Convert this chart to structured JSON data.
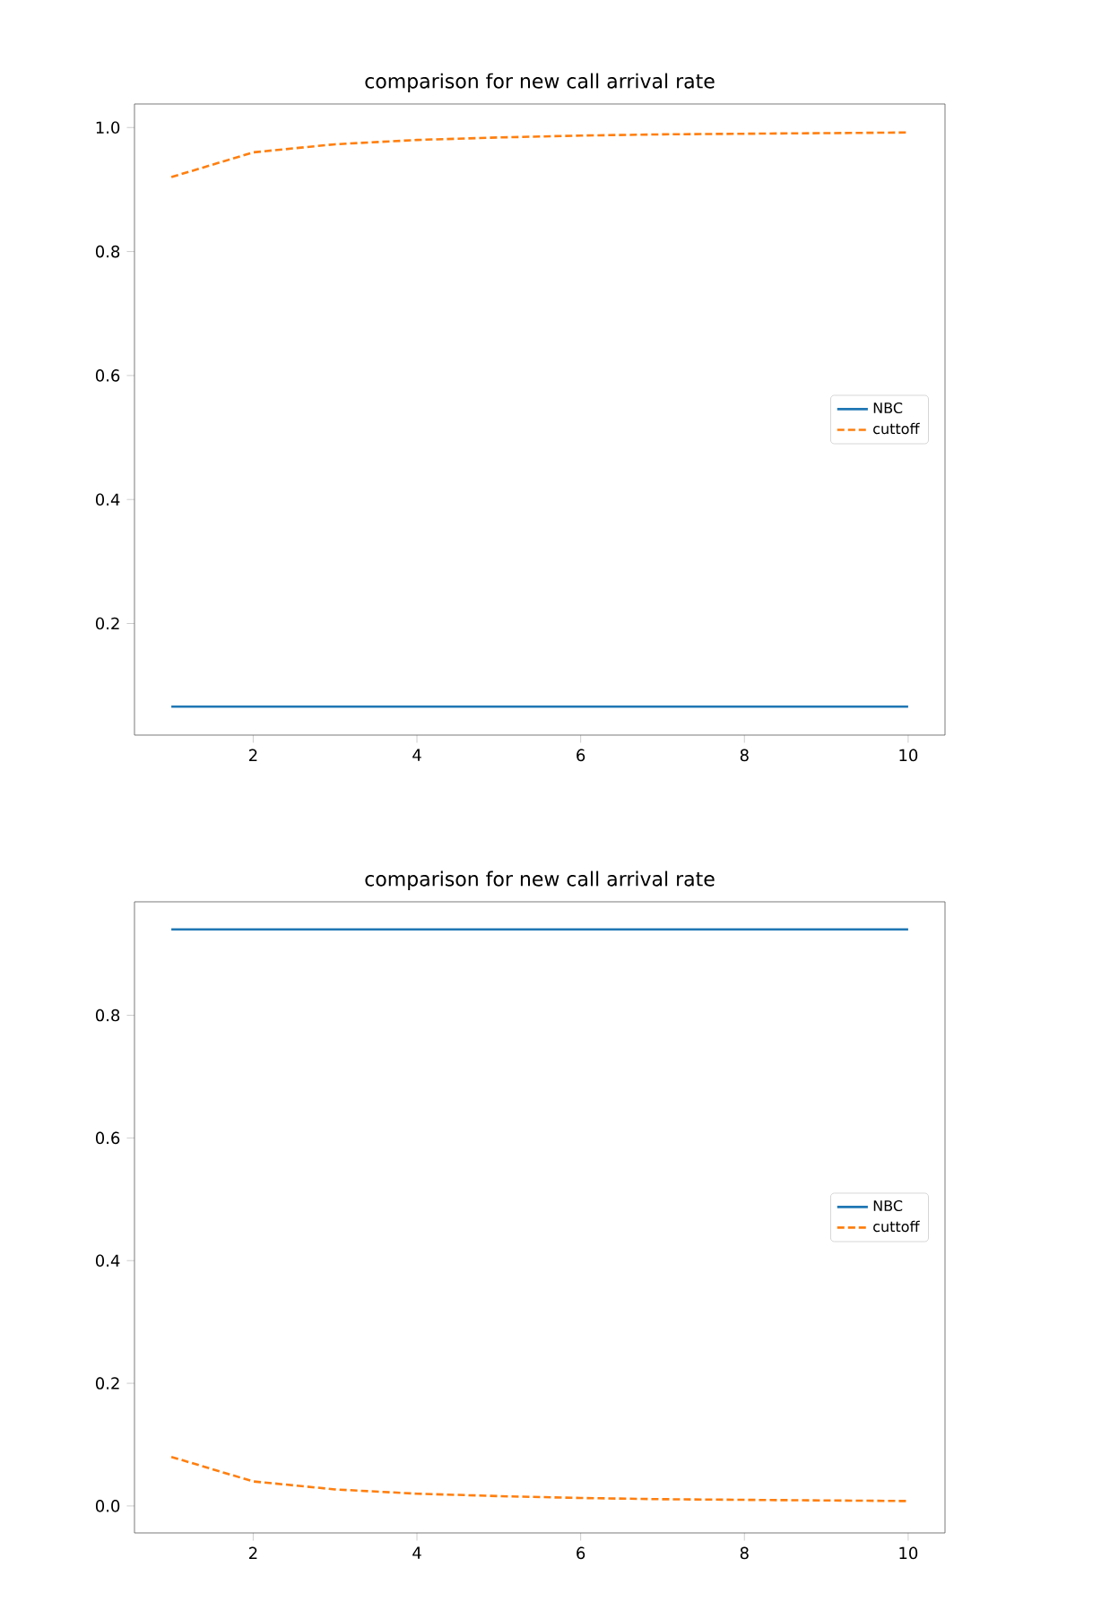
{
  "chart_data": [
    {
      "type": "line",
      "title": "comparison for new call arrival rate",
      "x": [
        1,
        2,
        3,
        4,
        5,
        6,
        7,
        8,
        9,
        10
      ],
      "series": [
        {
          "name": "NBC",
          "color": "#1f77b4",
          "line_style": "solid",
          "values": [
            0.066,
            0.066,
            0.066,
            0.066,
            0.066,
            0.066,
            0.066,
            0.066,
            0.066,
            0.066
          ]
        },
        {
          "name": "cuttoff",
          "color": "#ff7f0e",
          "line_style": "dashed",
          "values": [
            0.92,
            0.96,
            0.973,
            0.98,
            0.984,
            0.987,
            0.989,
            0.99,
            0.991,
            0.992
          ]
        }
      ],
      "xlim": [
        0.55,
        10.45
      ],
      "ylim": [
        0.02,
        1.038
      ],
      "xticks": [
        2,
        4,
        6,
        8,
        10
      ],
      "yticks": [
        0.2,
        0.4,
        0.6,
        0.8,
        {
          "value": 1.0,
          "label": "1.0"
        }
      ],
      "legend": "right",
      "grid": false,
      "marker": "none"
    },
    {
      "type": "line",
      "title": "comparison for  new call arrival rate",
      "x": [
        1,
        2,
        3,
        4,
        5,
        6,
        7,
        8,
        9,
        10
      ],
      "series": [
        {
          "name": "NBC",
          "color": "#1f77b4",
          "line_style": "solid",
          "values": [
            0.94,
            0.94,
            0.94,
            0.94,
            0.94,
            0.94,
            0.94,
            0.94,
            0.94,
            0.94
          ]
        },
        {
          "name": "cuttoff",
          "color": "#ff7f0e",
          "line_style": "dashed",
          "values": [
            0.08,
            0.04,
            0.027,
            0.02,
            0.016,
            0.013,
            0.011,
            0.01,
            0.009,
            0.008
          ]
        }
      ],
      "xlim": [
        0.55,
        10.45
      ],
      "ylim": [
        -0.044,
        0.985
      ],
      "xticks": [
        2,
        4,
        6,
        8,
        10
      ],
      "yticks": [
        {
          "value": 0.0,
          "label": "0.0"
        },
        0.2,
        0.4,
        0.6,
        0.8
      ],
      "legend": "right",
      "grid": false,
      "marker": "none"
    }
  ]
}
